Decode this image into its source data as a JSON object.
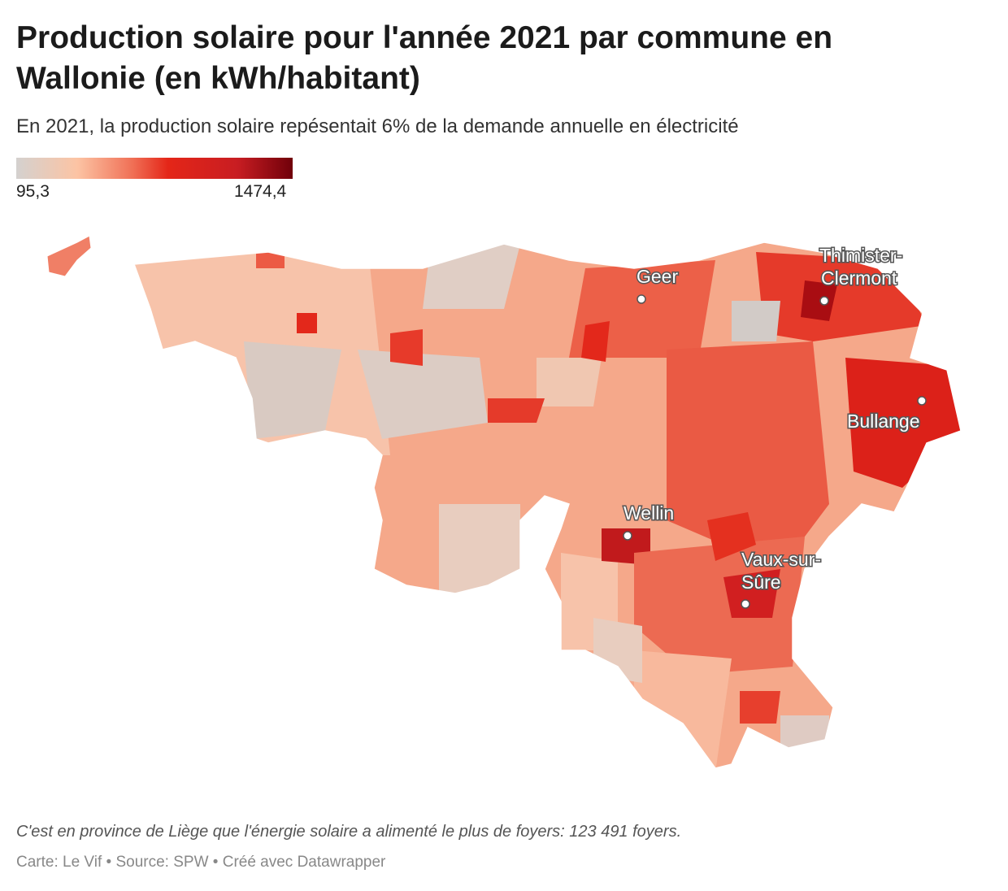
{
  "header": {
    "title": "Production solaire pour l'année 2021 par commune en Wallonie (en kWh/habitant)",
    "subtitle": "En 2021, la production solaire repésentait 6% de la demande annuelle en électricité"
  },
  "legend": {
    "min": "95,3",
    "max": "1474,4",
    "colors": [
      "#d4d1cf",
      "#fcc4a4",
      "#f07056",
      "#e42618",
      "#c81d22",
      "#70000a"
    ]
  },
  "map": {
    "region": "Wallonie",
    "markers": [
      {
        "label": "Geer"
      },
      {
        "label": "Thimister-",
        "label2": "Clermont"
      },
      {
        "label": "Bullange"
      },
      {
        "label": "Wellin"
      },
      {
        "label": "Vaux-sur-",
        "label2": "Sûre"
      }
    ]
  },
  "footer": {
    "note": "C'est en province de Liège que l'énergie solaire a alimenté le plus de foyers: 123 491 foyers.",
    "credit": "Carte: Le Vif • Source: SPW • Créé avec Datawrapper"
  }
}
